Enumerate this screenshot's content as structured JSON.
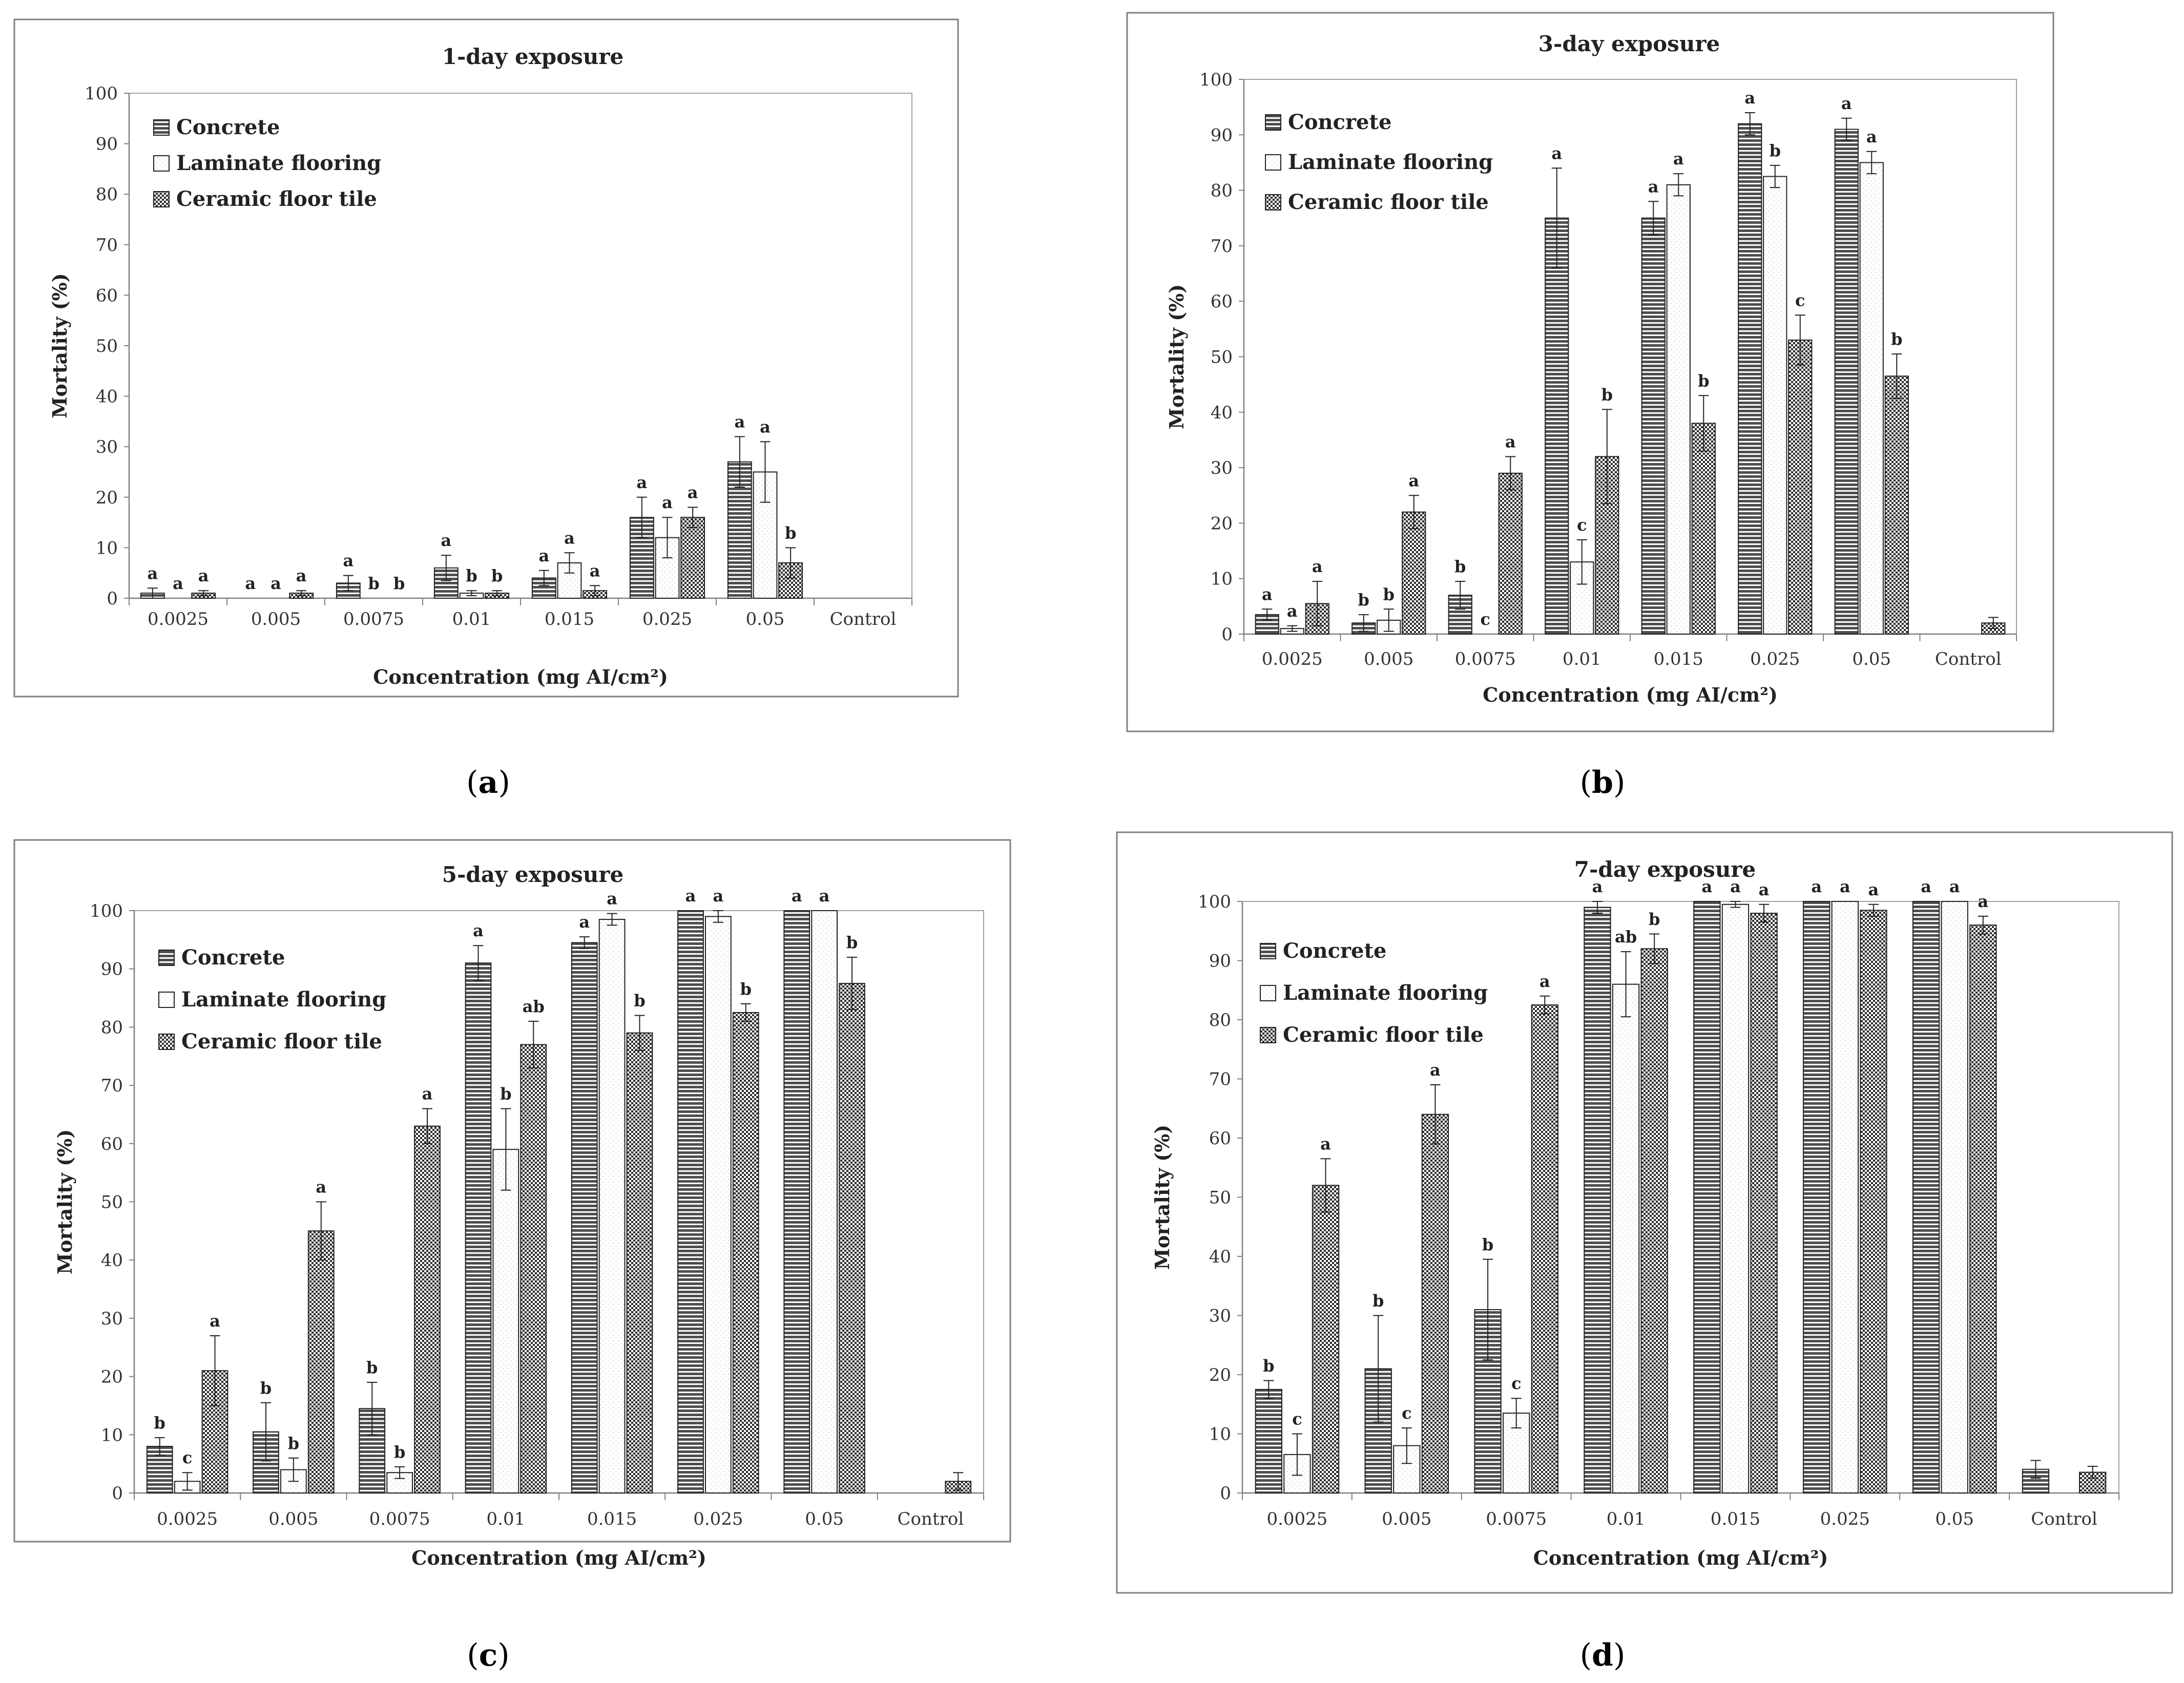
{
  "figure": {
    "categories": [
      "0.0025",
      "0.005",
      "0.0075",
      "0.01",
      "0.015",
      "0.025",
      "0.05",
      "Control"
    ],
    "series_names": [
      "Concrete",
      "Laminate flooring",
      "Ceramic floor tile"
    ],
    "ylabel": "Mortality (%)",
    "xlabel": "Concentration (mg AI/cm²)",
    "colors": {
      "concrete_fill": "#5a5a5a",
      "laminate_fill": "#ffffff",
      "ceramic_fill": "#3a3a3a",
      "frame": "#808080"
    }
  },
  "chart_data": [
    {
      "type": "bar",
      "panel_label": "a",
      "title": "1-day exposure",
      "xlabel": "Concentration (mg AI/cm²)",
      "ylabel": "Mortality (%)",
      "ylim": [
        0,
        100
      ],
      "yticks": [
        "0",
        "10",
        "20",
        "30",
        "40",
        "50",
        "60",
        "70",
        "80",
        "90",
        "100"
      ],
      "categories": [
        "0.0025",
        "0.005",
        "0.0075",
        "0.01",
        "0.015",
        "0.025",
        "0.05",
        "Control"
      ],
      "series": [
        {
          "name": "Concrete",
          "values": [
            1,
            0,
            3,
            6,
            4,
            16,
            27,
            0
          ],
          "errors": [
            1,
            0,
            1.5,
            2.5,
            1.5,
            4,
            5,
            0
          ],
          "letters": [
            "a",
            "a",
            "a",
            "a",
            "a",
            "a",
            "a",
            ""
          ]
        },
        {
          "name": "Laminate flooring",
          "values": [
            0,
            0,
            0,
            1,
            7,
            12,
            25,
            0
          ],
          "errors": [
            0,
            0,
            0,
            0.5,
            2,
            4,
            6,
            0
          ],
          "letters": [
            "a",
            "a",
            "b",
            "b",
            "a",
            "a",
            "a",
            ""
          ]
        },
        {
          "name": "Ceramic floor tile",
          "values": [
            1,
            1,
            0,
            1,
            1.5,
            16,
            7,
            0
          ],
          "errors": [
            0.5,
            0.5,
            0,
            0.5,
            1,
            2,
            3,
            0
          ],
          "letters": [
            "a",
            "a",
            "b",
            "b",
            "a",
            "a",
            "b",
            ""
          ]
        }
      ]
    },
    {
      "type": "bar",
      "panel_label": "b",
      "title": "3-day exposure",
      "xlabel": "Concentration (mg AI/cm²)",
      "ylabel": "Mortality (%)",
      "ylim": [
        0,
        100
      ],
      "yticks": [
        "0",
        "10",
        "20",
        "30",
        "40",
        "50",
        "60",
        "70",
        "80",
        "90",
        "100"
      ],
      "categories": [
        "0.0025",
        "0.005",
        "0.0075",
        "0.01",
        "0.015",
        "0.025",
        "0.05",
        "Control"
      ],
      "series": [
        {
          "name": "Concrete",
          "values": [
            3.5,
            2,
            7,
            75,
            75,
            92,
            91,
            0
          ],
          "errors": [
            1,
            1.5,
            2.5,
            9,
            3,
            2,
            2,
            0
          ],
          "letters": [
            "a",
            "b",
            "b",
            "a",
            "a",
            "a",
            "a",
            ""
          ]
        },
        {
          "name": "Laminate flooring",
          "values": [
            1,
            2.5,
            0,
            13,
            81,
            82.5,
            85,
            0
          ],
          "errors": [
            0.5,
            2,
            0,
            4,
            2,
            2,
            2,
            0
          ],
          "letters": [
            "a",
            "b",
            "c",
            "c",
            "a",
            "b",
            "a",
            ""
          ]
        },
        {
          "name": "Ceramic floor tile",
          "values": [
            5.5,
            22,
            29,
            32,
            38,
            53,
            46.5,
            2
          ],
          "errors": [
            4,
            3,
            3,
            8.5,
            5,
            4.5,
            4,
            1
          ],
          "letters": [
            "a",
            "a",
            "a",
            "b",
            "b",
            "c",
            "b",
            ""
          ]
        }
      ]
    },
    {
      "type": "bar",
      "panel_label": "c",
      "title": "5-day exposure",
      "xlabel": "Concentration (mg AI/cm²)",
      "ylabel": "Mortality (%)",
      "ylim": [
        0,
        100
      ],
      "yticks": [
        "0",
        "10",
        "20",
        "30",
        "40",
        "50",
        "60",
        "70",
        "80",
        "90",
        "100"
      ],
      "categories": [
        "0.0025",
        "0.005",
        "0.0075",
        "0.01",
        "0.015",
        "0.025",
        "0.05",
        "Control"
      ],
      "series": [
        {
          "name": "Concrete",
          "values": [
            8,
            10.5,
            14.5,
            91,
            94.5,
            100,
            100,
            0
          ],
          "errors": [
            1.5,
            5,
            4.5,
            3,
            1,
            0,
            0,
            0
          ],
          "letters": [
            "b",
            "b",
            "b",
            "a",
            "a",
            "a",
            "a",
            ""
          ]
        },
        {
          "name": "Laminate flooring",
          "values": [
            2,
            4,
            3.5,
            59,
            98.5,
            99,
            100,
            0
          ],
          "errors": [
            1.5,
            2,
            1,
            7,
            1,
            1,
            0,
            0
          ],
          "letters": [
            "c",
            "b",
            "b",
            "b",
            "a",
            "a",
            "a",
            ""
          ]
        },
        {
          "name": "Ceramic floor tile",
          "values": [
            21,
            45,
            63,
            77,
            79,
            82.5,
            87.5,
            2
          ],
          "errors": [
            6,
            5,
            3,
            4,
            3,
            1.5,
            4.5,
            1.5
          ],
          "letters": [
            "a",
            "a",
            "a",
            "ab",
            "b",
            "b",
            "b",
            ""
          ]
        }
      ]
    },
    {
      "type": "bar",
      "panel_label": "d",
      "title": "7-day exposure",
      "xlabel": "Concentration (mg AI/cm²)",
      "ylabel": "Mortality (%)",
      "ylim": [
        0,
        100
      ],
      "yticks": [
        "0",
        "10",
        "20",
        "30",
        "40",
        "50",
        "60",
        "70",
        "80",
        "90",
        "100"
      ],
      "categories": [
        "0.0025",
        "0.005",
        "0.0075",
        "0.01",
        "0.015",
        "0.025",
        "0.05",
        "Control"
      ],
      "series": [
        {
          "name": "Concrete",
          "values": [
            17.5,
            21,
            31,
            99,
            100,
            100,
            100,
            4
          ],
          "errors": [
            1.5,
            9,
            8.5,
            1,
            0,
            0,
            0,
            1.5
          ],
          "letters": [
            "b",
            "b",
            "b",
            "a",
            "a",
            "a",
            "a",
            ""
          ]
        },
        {
          "name": "Laminate flooring",
          "values": [
            6.5,
            8,
            13.5,
            86,
            99.5,
            100,
            100,
            0
          ],
          "errors": [
            3.5,
            3,
            2.5,
            5.5,
            0.5,
            0,
            0,
            0
          ],
          "letters": [
            "c",
            "c",
            "c",
            "ab",
            "a",
            "a",
            "a",
            ""
          ]
        },
        {
          "name": "Ceramic floor tile",
          "values": [
            52,
            64,
            82.5,
            92,
            98,
            98.5,
            96,
            3.5
          ],
          "errors": [
            4.5,
            5,
            1.5,
            2.5,
            1.5,
            1,
            1.5,
            1
          ],
          "letters": [
            "a",
            "a",
            "a",
            "b",
            "a",
            "a",
            "a",
            ""
          ]
        }
      ]
    }
  ]
}
